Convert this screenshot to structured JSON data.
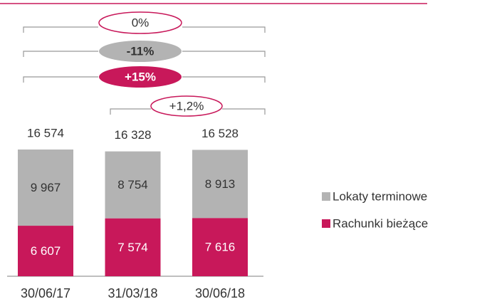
{
  "chart_data": {
    "type": "stacked_bar",
    "categories": [
      "30/06/17",
      "31/03/18",
      "30/06/18"
    ],
    "series": [
      {
        "name": "Rachunki bieżące",
        "color": "#c8185a",
        "values": [
          6607,
          7574,
          7616
        ],
        "value_labels": [
          "6 607",
          "7 574",
          "7 616"
        ]
      },
      {
        "name": "Lokaty terminowe",
        "color": "#b3b3b3",
        "values": [
          9967,
          8754,
          8913
        ],
        "value_labels": [
          "9 967",
          "8 754",
          "8 913"
        ]
      }
    ],
    "totals": [
      16574,
      16328,
      16528
    ],
    "total_labels": [
      "16 574",
      "16 328",
      "16 528"
    ],
    "annotations": [
      "0%",
      "-11%",
      "+15%",
      "+1,2%"
    ],
    "legend": "right"
  }
}
